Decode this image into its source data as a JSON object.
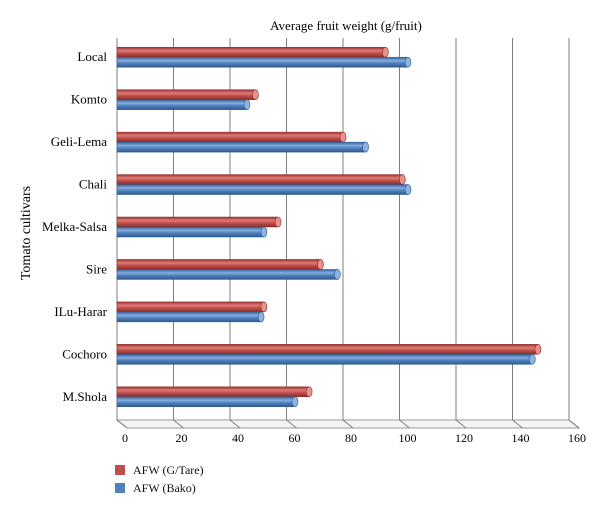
{
  "chart_data": {
    "type": "bar",
    "orientation": "horizontal",
    "title": "Average fruit weight (g/fruit)",
    "xlabel": "",
    "ylabel": "Tomato cultivars",
    "xlim": [
      0,
      160
    ],
    "xticks": [
      0,
      20,
      40,
      60,
      80,
      100,
      120,
      140,
      160
    ],
    "grid": "vertical",
    "legend_position": "bottom-left",
    "categories": [
      "Local",
      "Komto",
      "Geli-Lema",
      "Chali",
      "Melka-Salsa",
      "Sire",
      "ILu-Harar",
      "Cochoro",
      "M.Shola"
    ],
    "series": [
      {
        "name": "AFW (G/Tare)",
        "color": "#c0504d",
        "values": [
          95,
          49,
          80,
          101,
          57,
          72,
          52,
          149,
          68
        ]
      },
      {
        "name": "AFW (Bako)",
        "color": "#4f81bd",
        "values": [
          103,
          46,
          88,
          103,
          52,
          78,
          51,
          147,
          63
        ]
      }
    ]
  }
}
